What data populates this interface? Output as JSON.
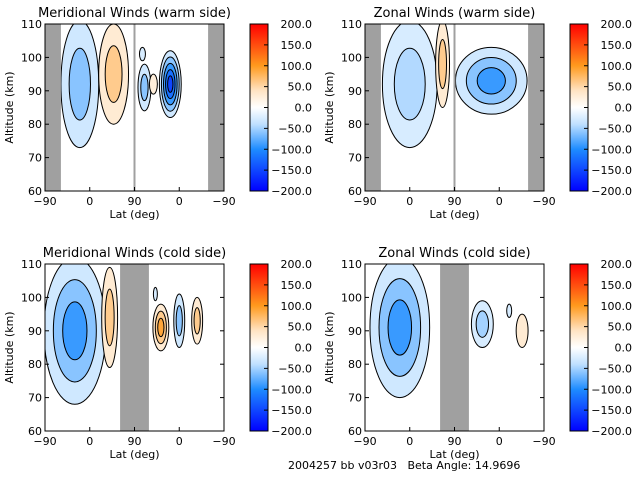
{
  "footer": "2004257 bb v03r03   Beta Angle: 14.9696",
  "colors": {
    "min": "#0000ff",
    "mid_neg": "#1e8cff",
    "light_neg": "#bfe0ff",
    "zero": "#ffffff",
    "light_pos": "#ffe4c4",
    "mid_pos": "#ff9a1e",
    "max": "#ff0000",
    "missing": "#a0a0a0"
  },
  "chart_data": [
    {
      "type": "heatmap",
      "subtype": "filled-contour",
      "title": "Meridional Winds (warm side)",
      "xlabel": "Lat (deg)",
      "ylabel": "Altitude (km)",
      "x_ticklabels": [
        "-90",
        "0",
        "90",
        "0",
        "-90"
      ],
      "y_ticks": [
        60,
        70,
        80,
        90,
        100,
        110
      ],
      "ylim": [
        60,
        110
      ],
      "colorbar": {
        "range": [
          -200,
          200
        ],
        "ticklabels": [
          "200.0",
          "150.0",
          "100.0",
          "50.0",
          "0.0",
          "-50.0",
          "-100.0",
          "-150.0",
          "-200.0"
        ]
      },
      "missing_bands": [
        [
          0,
          32
        ],
        [
          178,
          182
        ],
        [
          328,
          360
        ]
      ],
      "features": [
        {
          "track": 70,
          "alt": 92,
          "w": 38,
          "h": 19,
          "levels": [
            -30,
            -60
          ]
        },
        {
          "track": 138,
          "alt": 95,
          "w": 30,
          "h": 15,
          "levels": [
            30,
            60
          ]
        },
        {
          "track": 200,
          "alt": 91,
          "w": 13,
          "h": 7,
          "levels": [
            -30,
            -60
          ]
        },
        {
          "track": 218,
          "alt": 92,
          "w": 8,
          "h": 3,
          "levels": [
            25
          ]
        },
        {
          "track": 196,
          "alt": 101,
          "w": 6,
          "h": 2,
          "levels": [
            -25
          ]
        },
        {
          "track": 252,
          "alt": 92,
          "w": 22,
          "h": 10,
          "levels": [
            -30,
            -60,
            -90,
            -120,
            -150
          ]
        }
      ]
    },
    {
      "type": "heatmap",
      "subtype": "filled-contour",
      "title": "Zonal Winds (warm side)",
      "xlabel": "Lat (deg)",
      "ylabel": "Altitude (km)",
      "x_ticklabels": [
        "-90",
        "0",
        "90",
        "0",
        "-90"
      ],
      "y_ticks": [
        60,
        70,
        80,
        90,
        100,
        110
      ],
      "ylim": [
        60,
        110
      ],
      "colorbar": {
        "range": [
          -200,
          200
        ],
        "ticklabels": [
          "200.0",
          "150.0",
          "100.0",
          "50.0",
          "0.0",
          "-50.0",
          "-100.0",
          "-150.0",
          "-200.0"
        ]
      },
      "missing_bands": [
        [
          0,
          32
        ],
        [
          178,
          182
        ],
        [
          328,
          360
        ]
      ],
      "features": [
        {
          "track": 90,
          "alt": 92,
          "w": 55,
          "h": 19,
          "levels": [
            -25,
            -45
          ]
        },
        {
          "track": 156,
          "alt": 98,
          "w": 14,
          "h": 13,
          "levels": [
            30,
            60
          ]
        },
        {
          "track": 254,
          "alt": 93,
          "w": 72,
          "h": 10,
          "levels": [
            -30,
            -60,
            -90
          ]
        }
      ]
    },
    {
      "type": "heatmap",
      "subtype": "filled-contour",
      "title": "Meridional Winds (cold side)",
      "xlabel": "Lat (deg)",
      "ylabel": "Altitude (km)",
      "x_ticklabels": [
        "-90",
        "0",
        "90",
        "0",
        "-90"
      ],
      "y_ticks": [
        60,
        70,
        80,
        90,
        100,
        110
      ],
      "ylim": [
        60,
        110
      ],
      "colorbar": {
        "range": [
          -200,
          200
        ],
        "ticklabels": [
          "200.0",
          "150.0",
          "100.0",
          "50.0",
          "0.0",
          "-50.0",
          "-100.0",
          "-150.0",
          "-200.0"
        ]
      },
      "missing_bands": [
        [
          151,
          209
        ]
      ],
      "features": [
        {
          "track": 60,
          "alt": 90,
          "w": 62,
          "h": 22,
          "levels": [
            -30,
            -60,
            -90
          ]
        },
        {
          "track": 130,
          "alt": 94,
          "w": 16,
          "h": 15,
          "levels": [
            30,
            60
          ]
        },
        {
          "track": 233,
          "alt": 91,
          "w": 16,
          "h": 7,
          "levels": [
            30,
            60,
            90
          ]
        },
        {
          "track": 270,
          "alt": 93,
          "w": 11,
          "h": 8,
          "levels": [
            -30,
            -60
          ]
        },
        {
          "track": 306,
          "alt": 93,
          "w": 11,
          "h": 7,
          "levels": [
            30,
            60
          ]
        },
        {
          "track": 222,
          "alt": 101,
          "w": 4,
          "h": 2,
          "levels": [
            -25
          ]
        }
      ]
    },
    {
      "type": "heatmap",
      "subtype": "filled-contour",
      "title": "Zonal Winds (cold side)",
      "xlabel": "Lat (deg)",
      "ylabel": "Altitude (km)",
      "x_ticklabels": [
        "-90",
        "0",
        "90",
        "0",
        "-90"
      ],
      "y_ticks": [
        60,
        70,
        80,
        90,
        100,
        110
      ],
      "ylim": [
        60,
        110
      ],
      "colorbar": {
        "range": [
          -200,
          200
        ],
        "ticklabels": [
          "200.0",
          "150.0",
          "100.0",
          "50.0",
          "0.0",
          "-50.0",
          "-100.0",
          "-150.0",
          "-200.0"
        ]
      },
      "missing_bands": [
        [
          151,
          209
        ]
      ],
      "features": [
        {
          "track": 70,
          "alt": 91,
          "w": 60,
          "h": 21,
          "levels": [
            -30,
            -60,
            -90
          ]
        },
        {
          "track": 236,
          "alt": 92,
          "w": 22,
          "h": 7,
          "levels": [
            -25,
            -50
          ]
        },
        {
          "track": 316,
          "alt": 90,
          "w": 12,
          "h": 5,
          "levels": [
            30
          ]
        },
        {
          "track": 290,
          "alt": 96,
          "w": 5,
          "h": 2,
          "levels": [
            -25
          ]
        }
      ]
    }
  ]
}
